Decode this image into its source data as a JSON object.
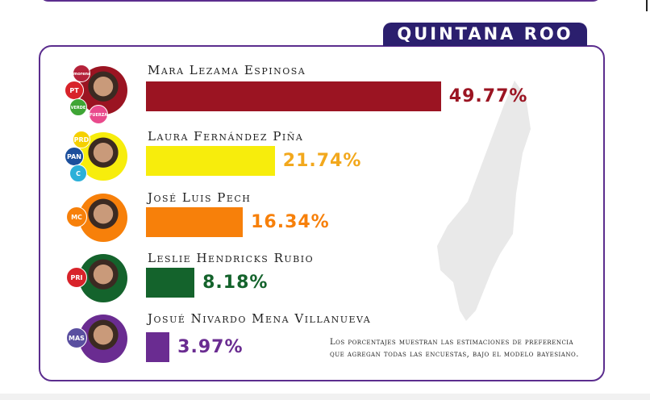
{
  "region": "QUINTANA ROO",
  "note_lines": [
    "Los porcentajes muestran las estimaciones de preferencia",
    "que agregan todas las encuestas, bajo el modelo bayesiano."
  ],
  "candidates": [
    {
      "name": "Mara Lezama Espinosa",
      "pct_label": "49.77%",
      "value": 49.77,
      "color": "#9b1422",
      "label_color": "#9b1422",
      "parties": [
        {
          "text": "morena",
          "color": "#b5223a"
        },
        {
          "text": "PT",
          "color": "#d8232a"
        },
        {
          "text": "VERDE",
          "color": "#3fa535"
        },
        {
          "text": "FUERZA MÉXICO",
          "color": "#e94a8c"
        }
      ]
    },
    {
      "name": "Laura Fernández Piña",
      "pct_label": "21.74%",
      "value": 21.74,
      "color": "#f7ed0c",
      "label_color": "#f2a81d",
      "parties": [
        {
          "text": "PRD",
          "color": "#f5d000"
        },
        {
          "text": "PAN",
          "color": "#1c4f9c"
        },
        {
          "text": "C",
          "color": "#2bb0d9"
        }
      ]
    },
    {
      "name": "José Luis Pech",
      "pct_label": "16.34%",
      "value": 16.34,
      "color": "#f7800a",
      "label_color": "#f7800a",
      "parties": [
        {
          "text": "MC",
          "color": "#f7800a"
        }
      ]
    },
    {
      "name": "Leslie Hendricks Rubio",
      "pct_label": "8.18%",
      "value": 8.18,
      "color": "#14632c",
      "label_color": "#14632c",
      "parties": [
        {
          "text": "PRI",
          "color": "#d8232a"
        }
      ]
    },
    {
      "name": "Josué Nivardo Mena Villanueva",
      "pct_label": "3.97%",
      "value": 3.97,
      "color": "#6a2c91",
      "label_color": "#6a2c91",
      "parties": [
        {
          "text": "MAS",
          "color": "#5a4fa0"
        }
      ]
    }
  ],
  "chart_data": {
    "type": "bar",
    "categories": [
      "Mara Lezama Espinosa",
      "Laura Fernández Piña",
      "José Luis Pech",
      "Leslie Hendricks Rubio",
      "Josué Nivardo Mena Villanueva"
    ],
    "values": [
      49.77,
      21.74,
      16.34,
      8.18,
      3.97
    ],
    "title": "QUINTANA ROO",
    "orientation": "horizontal"
  }
}
